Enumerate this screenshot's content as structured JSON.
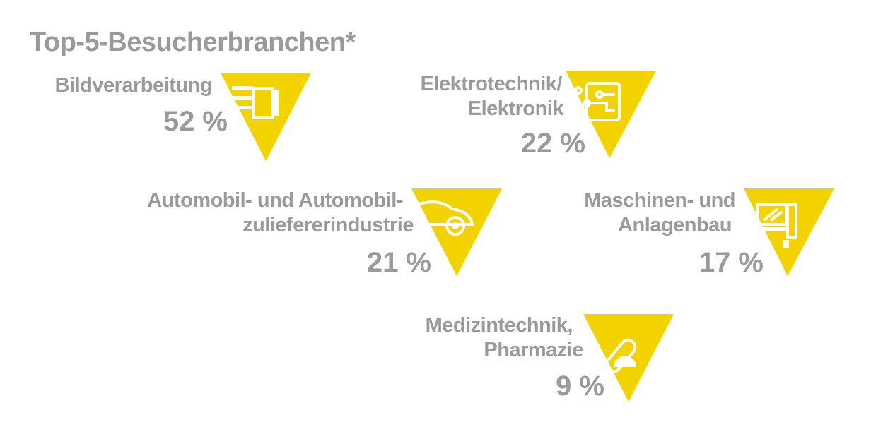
{
  "title": "Top-5-Besucherbranchen*",
  "items": [
    {
      "label": [
        "Bildverarbeitung"
      ],
      "value": "52 %"
    },
    {
      "label": [
        "Elektrotechnik/",
        "Elektronik"
      ],
      "value": "22 %"
    },
    {
      "label": [
        "Automobil- und Automobil-",
        "zuliefererindustrie"
      ],
      "value": "21 %"
    },
    {
      "label": [
        "Maschinen- und",
        "Anlagenbau"
      ],
      "value": "17 %"
    },
    {
      "label": [
        "Medizintechnik,",
        "Pharmazie"
      ],
      "value": "9 %"
    }
  ]
}
